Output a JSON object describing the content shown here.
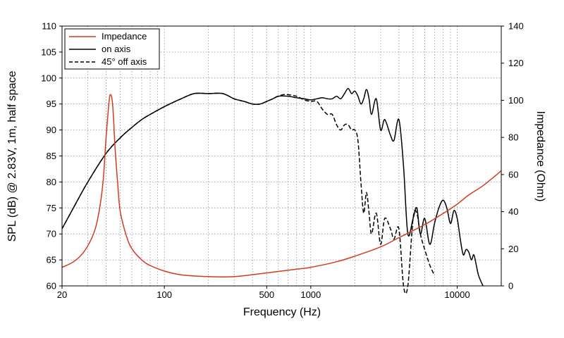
{
  "chart_data": {
    "type": "line",
    "xlabel": "Frequency (Hz)",
    "ylabel_left": "SPL (dB) @ 2.83V, 1m, half space",
    "ylabel_right": "Impedance (Ohm)",
    "x_scale": "log",
    "xlim": [
      20,
      20000
    ],
    "ylim_left": [
      60,
      110
    ],
    "ylim_right": [
      0,
      140
    ],
    "x_tick_labels": [
      {
        "value": 20,
        "label": "20"
      },
      {
        "value": 100,
        "label": "100"
      },
      {
        "value": 500,
        "label": "500"
      },
      {
        "value": 1000,
        "label": "1000"
      },
      {
        "value": 10000,
        "label": "10000"
      }
    ],
    "y_left_ticks": [
      "60",
      "65",
      "70",
      "75",
      "80",
      "85",
      "90",
      "95",
      "100",
      "105",
      "110"
    ],
    "y_right_ticks": [
      "0",
      "20",
      "40",
      "60",
      "80",
      "100",
      "120",
      "140"
    ],
    "grid": true,
    "legend_position": "top-left",
    "legend": [
      {
        "name": "Impedance",
        "color": "#d23c1e",
        "style": "solid"
      },
      {
        "name": "on axis",
        "color": "#000000",
        "style": "solid"
      },
      {
        "name": "45° off axis",
        "color": "#000000",
        "style": "dashed"
      }
    ],
    "series": [
      {
        "name": "Impedance",
        "axis": "right",
        "color": "#d23c1e",
        "x": [
          20,
          24,
          28,
          32,
          35,
          38,
          40,
          42,
          43,
          44,
          45,
          46,
          48,
          50,
          55,
          60,
          70,
          80,
          100,
          130,
          200,
          300,
          500,
          800,
          1000,
          1500,
          2000,
          3000,
          4000,
          6000,
          8000,
          10000,
          12000,
          15000,
          20000
        ],
        "y": [
          10,
          13,
          18,
          26,
          36,
          55,
          80,
          100,
          103,
          100,
          90,
          75,
          55,
          40,
          27,
          20,
          14,
          11,
          8,
          6,
          5,
          5,
          7,
          9,
          10,
          13,
          16,
          21,
          26,
          33,
          39,
          44,
          49,
          54,
          62
        ]
      },
      {
        "name": "on axis",
        "axis": "left",
        "color": "#000000",
        "x": [
          20,
          25,
          30,
          40,
          50,
          60,
          70,
          80,
          100,
          130,
          160,
          200,
          250,
          300,
          350,
          400,
          450,
          500,
          550,
          600,
          700,
          800,
          900,
          1000,
          1100,
          1200,
          1300,
          1400,
          1500,
          1600,
          1700,
          1800,
          1900,
          2000,
          2100,
          2200,
          2300,
          2400,
          2500,
          2600,
          2800,
          3000,
          3200,
          3500,
          3700,
          4000,
          4300,
          4600,
          5000,
          5300,
          5600,
          6000,
          6500,
          7000,
          7500,
          8000,
          8500,
          9000,
          9500,
          10000,
          10500,
          11000,
          11500,
          12000,
          12500,
          13000,
          13500,
          14000,
          15000
        ],
        "y": [
          71,
          76,
          80,
          85.5,
          88.5,
          90.5,
          92,
          93,
          94.5,
          96,
          97,
          97,
          97,
          96,
          95.5,
          95,
          95,
          95.5,
          96,
          96.5,
          96.5,
          96.2,
          96,
          95.8,
          96,
          96.2,
          96,
          96,
          96.5,
          96,
          97,
          98,
          97,
          97.5,
          96.5,
          95,
          96,
          97.8,
          96,
          93,
          96,
          90,
          92,
          89,
          88,
          92,
          83,
          70,
          73,
          75,
          70,
          73,
          68,
          72,
          75,
          76.5,
          75,
          72,
          74.5,
          73,
          69,
          66,
          67,
          66.5,
          65,
          66,
          64,
          62,
          60
        ]
      },
      {
        "name": "45° off axis",
        "axis": "left",
        "color": "#000000",
        "x": [
          20,
          25,
          30,
          40,
          50,
          60,
          70,
          80,
          100,
          130,
          160,
          200,
          250,
          300,
          350,
          400,
          450,
          500,
          550,
          600,
          650,
          700,
          800,
          900,
          1000,
          1100,
          1200,
          1300,
          1400,
          1500,
          1600,
          1700,
          1800,
          1900,
          2000,
          2100,
          2200,
          2300,
          2400,
          2500,
          2600,
          2800,
          3000,
          3200,
          3500,
          3700,
          4000,
          4300,
          4600,
          5000,
          5300,
          5600,
          6000,
          6500,
          7000
        ],
        "y": [
          71,
          76,
          80,
          85.5,
          88.5,
          90.5,
          92,
          93,
          94.5,
          96,
          97,
          97,
          97,
          96,
          95.5,
          95,
          95,
          95.5,
          96,
          96.5,
          96.8,
          96.8,
          96.5,
          95.8,
          95.5,
          95.5,
          94,
          93,
          93,
          91,
          90,
          91,
          91,
          90,
          90,
          88,
          80,
          74,
          78,
          74,
          70,
          74,
          68,
          73,
          71,
          69,
          71,
          60,
          60,
          73,
          74,
          70,
          67,
          64,
          62
        ]
      }
    ]
  }
}
